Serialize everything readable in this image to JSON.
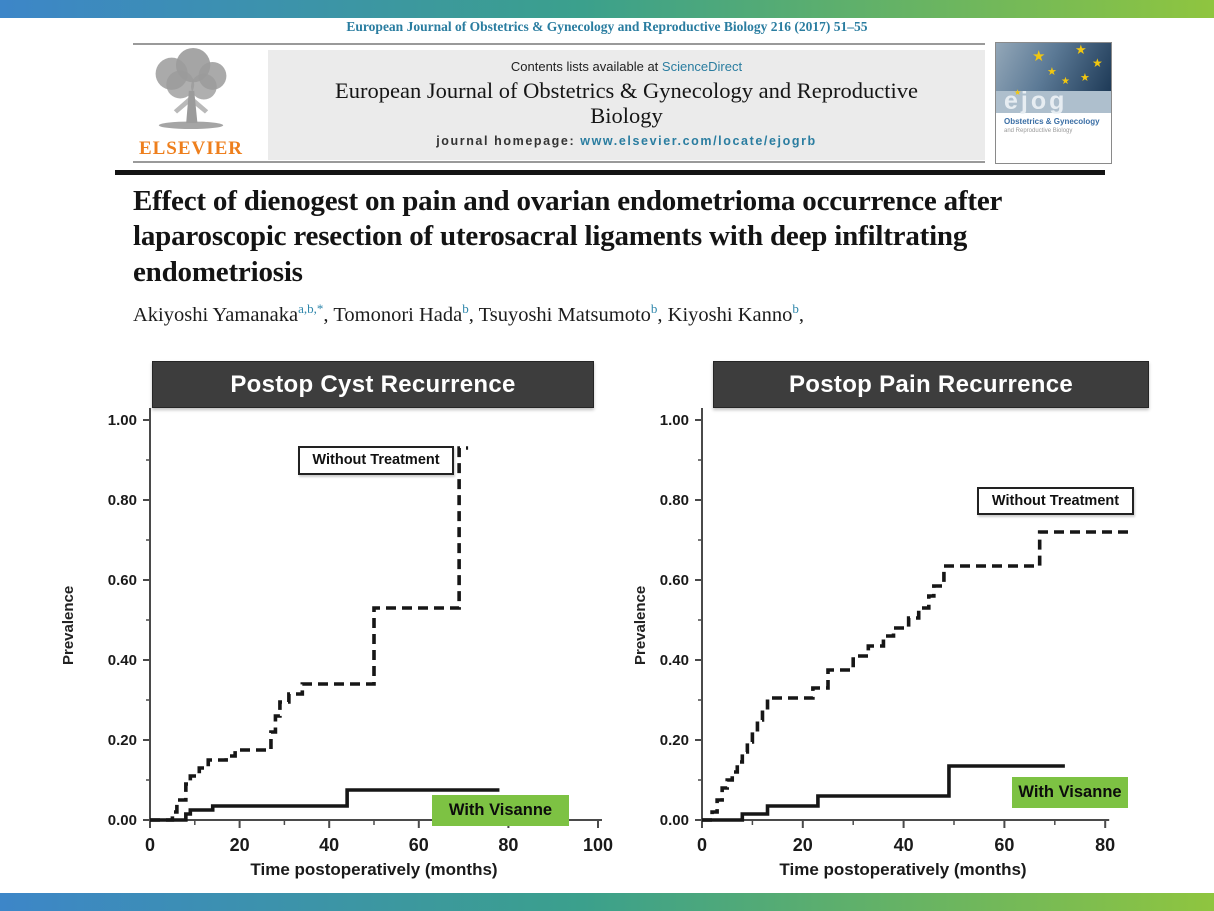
{
  "page": {
    "journal_citation": "European Journal of Obstetrics & Gynecology and Reproductive Biology 216 (2017) 51–55"
  },
  "masthead": {
    "contents_line_prefix": "Contents lists available at ",
    "sciencedirect_link": "ScienceDirect",
    "journal_title": "European Journal of Obstetrics & Gynecology and Reproductive Biology",
    "homepage_prefix": "journal homepage: ",
    "homepage_url": "www.elsevier.com/locate/ejogrb",
    "elsevier_label": "ELSEVIER",
    "cover": {
      "logo_text": "ejog",
      "subtitle": "Obstetrics & Gynecology",
      "subtitle2": "and Reproductive Biology"
    }
  },
  "article": {
    "title": "Effect of dienogest on pain and ovarian endometrioma occurrence after laparoscopic resection of uterosacral ligaments with deep infiltrating endometriosis",
    "authors": [
      {
        "name": "Akiyoshi Yamanaka",
        "sup": "a,b,*"
      },
      {
        "name": "Tomonori Hada",
        "sup": "b"
      },
      {
        "name": "Tsuyoshi Matsumoto",
        "sup": "b"
      },
      {
        "name": "Kiyoshi Kanno",
        "sup": "b"
      }
    ],
    "authors_trailing": ","
  },
  "chart_data": [
    {
      "type": "line",
      "subtype": "kaplan-meier-step",
      "title": "Postop Cyst Recurrence",
      "xlabel": "Time postoperatively (months)",
      "ylabel": "Prevalence",
      "xlim": [
        0,
        100
      ],
      "ylim": [
        0,
        1
      ],
      "xticks": [
        0,
        20,
        40,
        60,
        80,
        100
      ],
      "yticks": [
        "0.00",
        "0.20",
        "0.40",
        "0.60",
        "0.80",
        "1.00"
      ],
      "grid": false,
      "legend_position": "inline-labels",
      "series": [
        {
          "name": "Without Treatment",
          "line": "dashed",
          "steps": [
            [
              0,
              0
            ],
            [
              5,
              0.02
            ],
            [
              6,
              0.05
            ],
            [
              8,
              0.09
            ],
            [
              9,
              0.11
            ],
            [
              11,
              0.13
            ],
            [
              13,
              0.15
            ],
            [
              17,
              0.16
            ],
            [
              19,
              0.175
            ],
            [
              27,
              0.22
            ],
            [
              28,
              0.26
            ],
            [
              29,
              0.295
            ],
            [
              31,
              0.315
            ],
            [
              34,
              0.34
            ],
            [
              50,
              0.53
            ],
            [
              69,
              0.93
            ]
          ],
          "end": 71
        },
        {
          "name": "With Visanne",
          "line": "solid",
          "steps": [
            [
              0,
              0
            ],
            [
              8,
              0.015
            ],
            [
              9,
              0.025
            ],
            [
              14,
              0.035
            ],
            [
              44,
              0.075
            ]
          ],
          "end": 78
        }
      ]
    },
    {
      "type": "line",
      "subtype": "kaplan-meier-step",
      "title": "Postop Pain Recurrence",
      "xlabel": "Time postoperatively (months)",
      "ylabel": "Prevalence",
      "xlim": [
        0,
        80
      ],
      "ylim": [
        0,
        1
      ],
      "xticks": [
        0,
        20,
        40,
        60,
        80
      ],
      "yticks": [
        "0.00",
        "0.20",
        "0.40",
        "0.60",
        "0.80",
        "1.00"
      ],
      "grid": false,
      "legend_position": "inline-labels",
      "series": [
        {
          "name": "Without Treatment",
          "line": "dashed",
          "steps": [
            [
              0,
              0
            ],
            [
              2,
              0.02
            ],
            [
              3,
              0.05
            ],
            [
              4,
              0.08
            ],
            [
              5,
              0.1
            ],
            [
              6,
              0.12
            ],
            [
              7,
              0.145
            ],
            [
              8,
              0.17
            ],
            [
              9,
              0.195
            ],
            [
              10,
              0.22
            ],
            [
              11,
              0.25
            ],
            [
              12,
              0.275
            ],
            [
              13,
              0.305
            ],
            [
              22,
              0.33
            ],
            [
              25,
              0.375
            ],
            [
              30,
              0.41
            ],
            [
              33,
              0.435
            ],
            [
              36,
              0.46
            ],
            [
              38,
              0.48
            ],
            [
              41,
              0.505
            ],
            [
              43,
              0.53
            ],
            [
              45,
              0.56
            ],
            [
              46,
              0.585
            ],
            [
              48,
              0.635
            ],
            [
              67,
              0.72
            ]
          ],
          "end": 85
        },
        {
          "name": "With Visanne",
          "line": "solid",
          "steps": [
            [
              0,
              0
            ],
            [
              8,
              0.015
            ],
            [
              13,
              0.035
            ],
            [
              23,
              0.06
            ],
            [
              49,
              0.135
            ]
          ],
          "end": 72
        }
      ]
    }
  ],
  "colors": {
    "banner_gradient": [
      "#3d86c8",
      "#3ba08c",
      "#8fc53f"
    ],
    "accent_teal": "#2a7da0",
    "elsevier_orange": "#ee7f1d",
    "chart_header_bg": "#3d3d3d",
    "visanne_green": "#7dc243",
    "curve_black": "#161616"
  }
}
